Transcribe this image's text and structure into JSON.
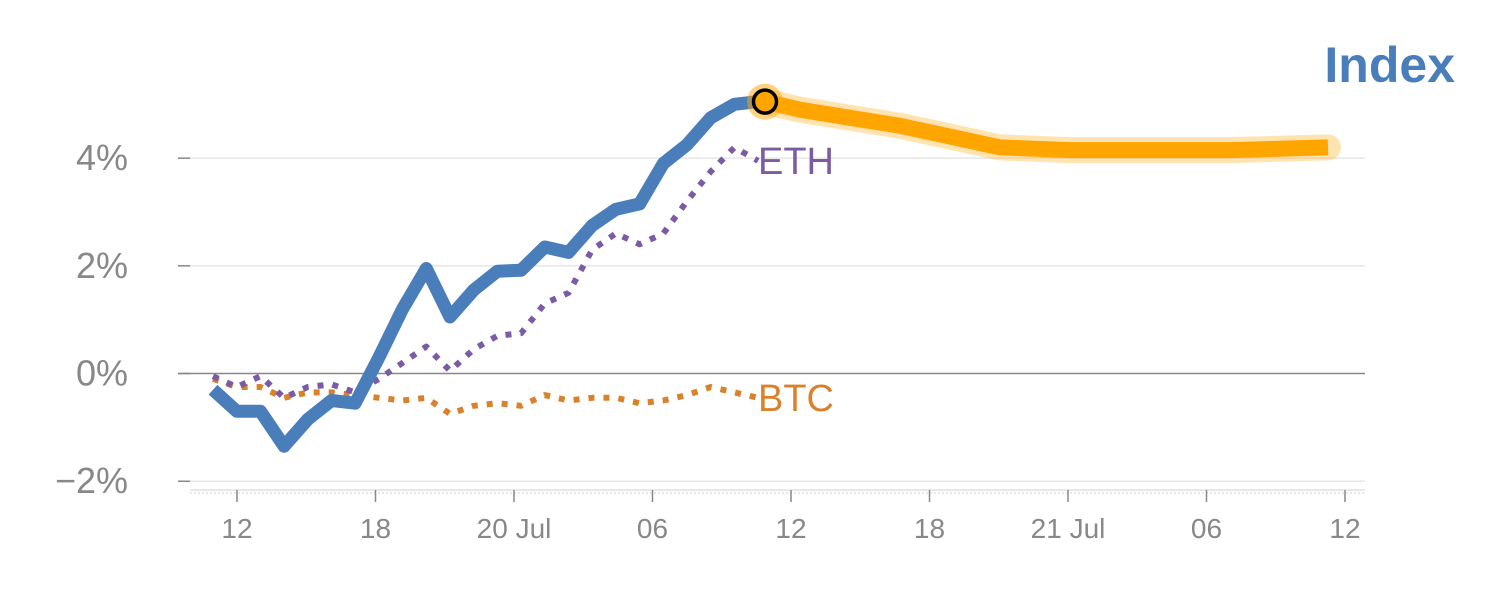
{
  "chart_data": {
    "type": "line",
    "title": "Index",
    "xlabel": "",
    "ylabel": "",
    "x_tick_labels": [
      "12",
      "18",
      "20 Jul",
      "06",
      "12",
      "18",
      "21 Jul",
      "06",
      "12"
    ],
    "y_ticks": [
      -2,
      0,
      2,
      4
    ],
    "y_tick_labels": [
      "−2%",
      "0%",
      "2%",
      "4%"
    ],
    "ylim": [
      -2.2,
      5.6
    ],
    "grid": true,
    "colors": {
      "index": "#4a7ebb",
      "eth": "#7b5ba6",
      "btc": "#d9822b",
      "forecast": "#ffa500",
      "title": "#4a7ebb"
    },
    "series": [
      {
        "name": "Index",
        "style": "solid",
        "values": [
          -0.3,
          -0.7,
          -0.7,
          -1.35,
          -0.85,
          -0.5,
          -0.55,
          0.3,
          1.2,
          1.95,
          1.05,
          1.55,
          1.9,
          1.92,
          2.35,
          2.25,
          2.75,
          3.05,
          3.15,
          3.9,
          4.25,
          4.75,
          5.0,
          5.05
        ]
      },
      {
        "name": "ETH",
        "style": "dotted",
        "values": [
          -0.05,
          -0.25,
          -0.05,
          -0.45,
          -0.25,
          -0.2,
          -0.35,
          -0.1,
          0.2,
          0.5,
          0.05,
          0.45,
          0.7,
          0.75,
          1.3,
          1.5,
          2.3,
          2.6,
          2.4,
          2.6,
          3.2,
          3.75,
          4.2,
          3.95
        ]
      },
      {
        "name": "BTC",
        "style": "dotted",
        "values": [
          -0.1,
          -0.25,
          -0.25,
          -0.45,
          -0.35,
          -0.35,
          -0.4,
          -0.45,
          -0.5,
          -0.45,
          -0.75,
          -0.6,
          -0.55,
          -0.6,
          -0.4,
          -0.5,
          -0.45,
          -0.45,
          -0.55,
          -0.5,
          -0.4,
          -0.25,
          -0.35,
          -0.45
        ]
      },
      {
        "name": "",
        "style": "forecast",
        "values": [
          5.05,
          4.9,
          4.75,
          4.6,
          4.4,
          4.2,
          4.15,
          4.15,
          4.15,
          4.2
        ]
      }
    ],
    "series_labels": [
      "ETH",
      "BTC"
    ]
  }
}
